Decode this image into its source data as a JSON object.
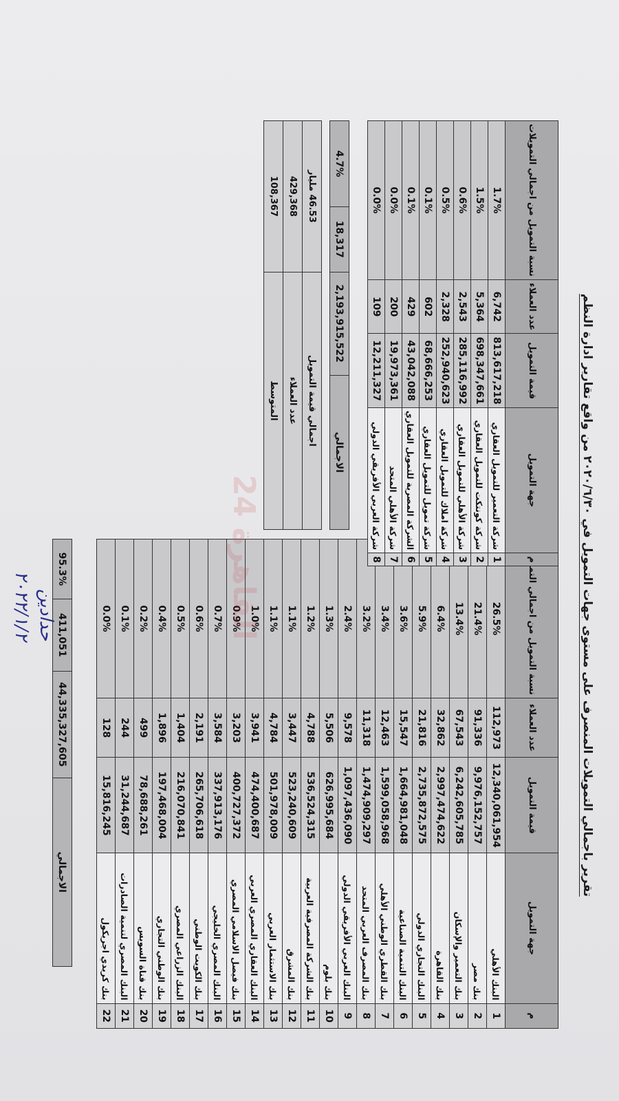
{
  "title": "تقرير باجمالي التمويلات المنصرف على مستوى جهات التمويل في ٢٠٢٠/٦/٣٠ من واقع تقارير ادارة النظم",
  "headers": {
    "idx": "م",
    "name": "جهة التمويل",
    "value": "قيمة التمويل",
    "clients": "عدد العملاء",
    "pct": "نسبة التمويل من اجمالي التمويلات"
  },
  "banks": [
    {
      "idx": "1",
      "name": "البنك الأهلي",
      "value": "12,340,061,954",
      "clients": "112,973",
      "pct": "26.5%"
    },
    {
      "idx": "2",
      "name": "بنك مصر",
      "value": "9,976,152,757",
      "clients": "91,336",
      "pct": "21.4%"
    },
    {
      "idx": "3",
      "name": "بنك التعمير والإسكان",
      "value": "6,242,605,785",
      "clients": "67,543",
      "pct": "13.4%"
    },
    {
      "idx": "4",
      "name": "بنك القاهرة",
      "value": "2,997,474,622",
      "clients": "32,862",
      "pct": "6.4%"
    },
    {
      "idx": "5",
      "name": "البنك التجاري الدولي",
      "value": "2,735,872,575",
      "clients": "21,816",
      "pct": "5.9%"
    },
    {
      "idx": "6",
      "name": "البنك التنمية الصناعية",
      "value": "1,664,981,048",
      "clients": "15,547",
      "pct": "3.6%"
    },
    {
      "idx": "7",
      "name": "بنك القطري الوطني الأهلي",
      "value": "1,599,058,968",
      "clients": "12,463",
      "pct": "3.4%"
    },
    {
      "idx": "8",
      "name": "بنك المصرف العربي المتحد",
      "value": "1,474,909,297",
      "clients": "11,318",
      "pct": "3.2%"
    },
    {
      "idx": "9",
      "name": "البنك العربي الأفريقي الدولي",
      "value": "1,097,436,090",
      "clients": "9,578",
      "pct": "2.4%"
    },
    {
      "idx": "10",
      "name": "بنك بلوم",
      "value": "626,995,684",
      "clients": "5,506",
      "pct": "1.3%"
    },
    {
      "idx": "11",
      "name": "بنك الشركة المصرفية العربية",
      "value": "536,524,315",
      "clients": "4,788",
      "pct": "1.2%"
    },
    {
      "idx": "12",
      "name": "بنك المشرق",
      "value": "523,240,609",
      "clients": "3,447",
      "pct": "1.1%"
    },
    {
      "idx": "13",
      "name": "بنك الاستثمار العربي",
      "value": "501,978,009",
      "clients": "4,784",
      "pct": "1.1%"
    },
    {
      "idx": "14",
      "name": "البنك العقاري المصري العربي",
      "value": "474,400,687",
      "clients": "3,941",
      "pct": "1.0%"
    },
    {
      "idx": "15",
      "name": "بنك فيصل الاسلامي المصري",
      "value": "400,727,372",
      "clients": "3,203",
      "pct": "0.9%"
    },
    {
      "idx": "16",
      "name": "البنك المصري الخليجي",
      "value": "337,913,176",
      "clients": "3,584",
      "pct": "0.7%"
    },
    {
      "idx": "17",
      "name": "بنك الكويت الوطني",
      "value": "265,706,618",
      "clients": "2,191",
      "pct": "0.6%"
    },
    {
      "idx": "18",
      "name": "البنك الزراعي المصري",
      "value": "216,070,841",
      "clients": "1,404",
      "pct": "0.5%"
    },
    {
      "idx": "19",
      "name": "بنك الوطني التجاري",
      "value": "197,468,004",
      "clients": "1,896",
      "pct": "0.4%"
    },
    {
      "idx": "20",
      "name": "بنك قناة السويس",
      "value": "78,688,261",
      "clients": "499",
      "pct": "0.2%"
    },
    {
      "idx": "21",
      "name": "البنك المصري لتنمية الصادرات",
      "value": "31,244,687",
      "clients": "244",
      "pct": "0.1%"
    },
    {
      "idx": "22",
      "name": "بنك كريدي اجريكول",
      "value": "15,816,245",
      "clients": "128",
      "pct": "0.0%"
    }
  ],
  "banks_total": {
    "label": "الاجمالي",
    "value": "44,335,327,605",
    "clients": "411,051",
    "pct": "95.3%"
  },
  "companies": [
    {
      "idx": "1",
      "name": "شركة التعمير للتمويل العقاري",
      "value": "813,617,218",
      "clients": "6,742",
      "pct": "1.7%"
    },
    {
      "idx": "2",
      "name": "شركة كونتكت للتمويل العقاري",
      "value": "698,347,661",
      "clients": "5,364",
      "pct": "1.5%"
    },
    {
      "idx": "3",
      "name": "شركة الأهلي للتمويل العقاري",
      "value": "285,116,992",
      "clients": "2,543",
      "pct": "0.6%"
    },
    {
      "idx": "4",
      "name": "شركة املاك للتمويل العقاري",
      "value": "252,940,623",
      "clients": "2,328",
      "pct": "0.5%"
    },
    {
      "idx": "5",
      "name": "شركة تمويل للتمويل العقاري",
      "value": "68,666,253",
      "clients": "602",
      "pct": "0.1%"
    },
    {
      "idx": "6",
      "name": "الشركة المصرية للتمويل العقاري",
      "value": "43,042,088",
      "clients": "429",
      "pct": "0.1%"
    },
    {
      "idx": "7",
      "name": "شركة الأهلي المتحد",
      "value": "19,973,361",
      "clients": "200",
      "pct": "0.0%"
    },
    {
      "idx": "8",
      "name": "شركة العربي الأفريقي الدولي",
      "value": "12,211,327",
      "clients": "109",
      "pct": "0.0%"
    }
  ],
  "companies_total": {
    "label": "الاجمالي",
    "value": "2,193,915,522",
    "clients": "18,317",
    "pct": "4.7%"
  },
  "summary": [
    {
      "label": "اجمالي قيمة التمويل",
      "value": "46.53 مليار"
    },
    {
      "label": "عدد العملاء",
      "value": "429,368"
    },
    {
      "label": "المتوسط",
      "value": "108,367"
    }
  ],
  "watermark": "القاهرة 24",
  "signature": "حدادين",
  "handwritten_date": "٢٠٢٢/١/٢"
}
